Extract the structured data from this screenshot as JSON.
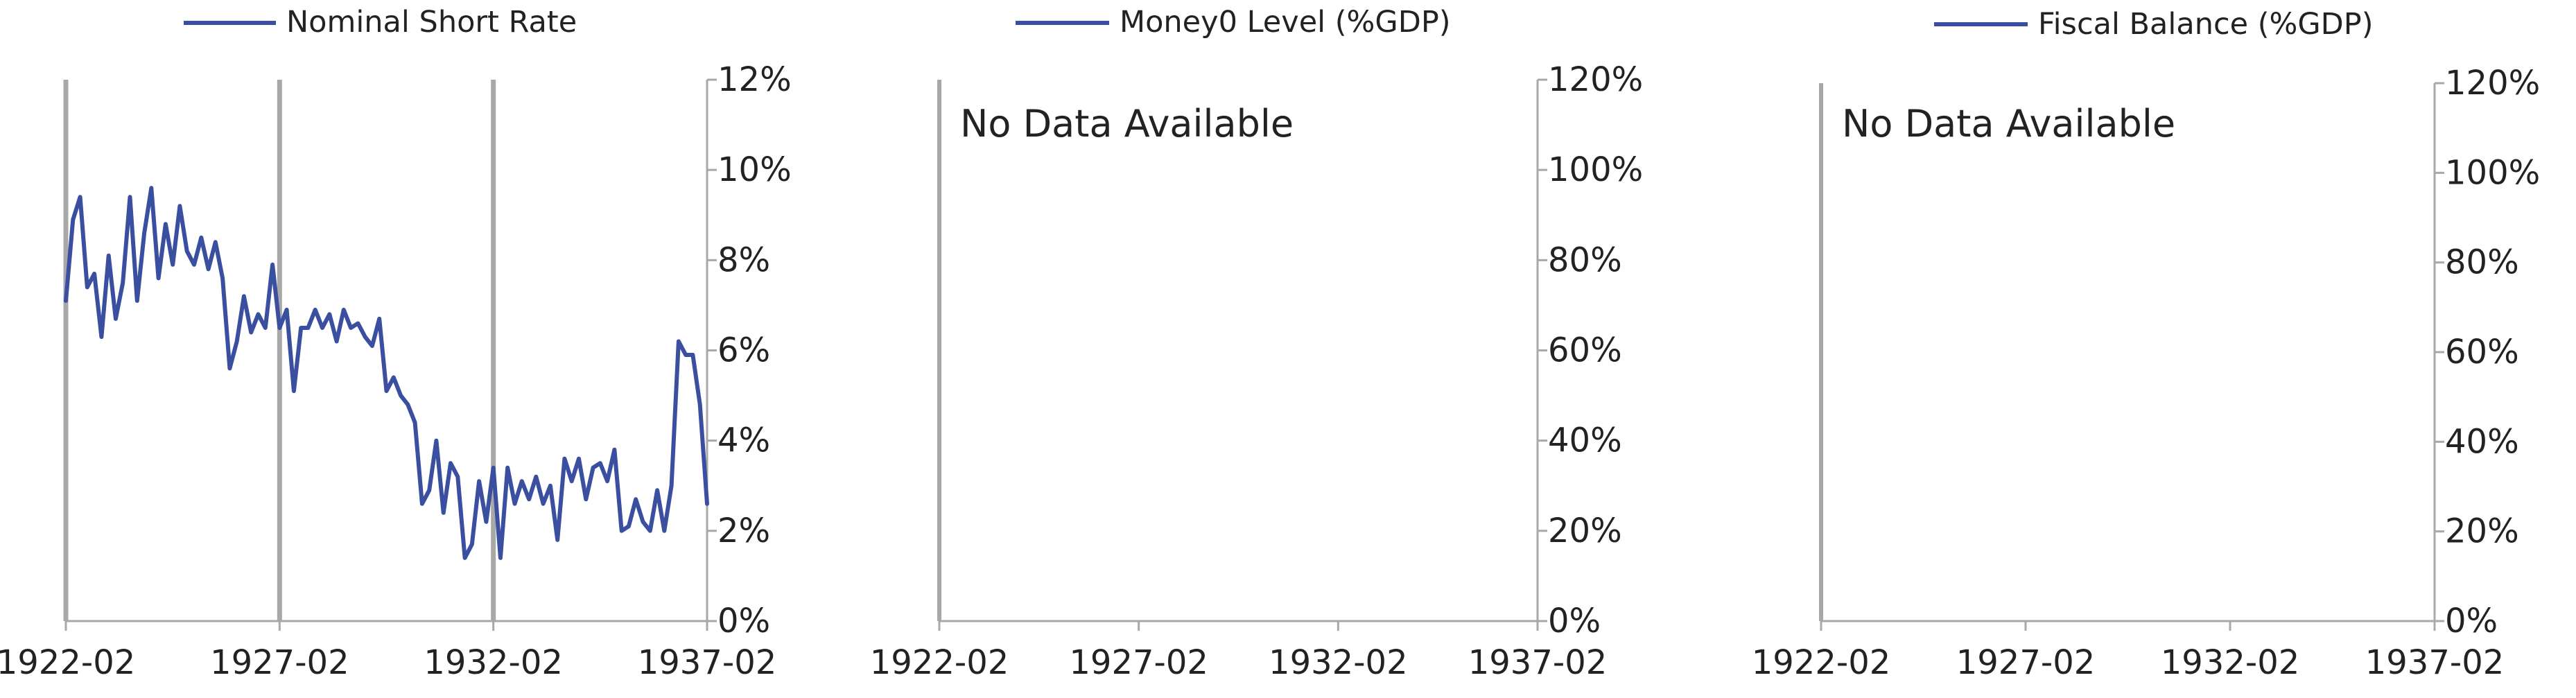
{
  "colors": {
    "series": "#3a4f9f",
    "axis": "#a8a8a8",
    "text": "#222222"
  },
  "chart_data": [
    {
      "type": "line",
      "legend": "Nominal Short Rate",
      "legend_position": "top",
      "x_ticks": [
        "1922-02",
        "1927-02",
        "1932-02",
        "1937-02"
      ],
      "y_ticks": [
        "0%",
        "2%",
        "4%",
        "6%",
        "8%",
        "10%",
        "12%"
      ],
      "ylim": [
        0,
        12
      ],
      "y_axis": "right",
      "vertical_markers": [
        "1922-02",
        "1927-02",
        "1932-02"
      ],
      "series": [
        {
          "name": "Nominal Short Rate",
          "values": [
            [
              "1922-02",
              7.1
            ],
            [
              "1922-04",
              8.9
            ],
            [
              "1922-06",
              9.4
            ],
            [
              "1922-08",
              7.4
            ],
            [
              "1922-10",
              7.7
            ],
            [
              "1922-12",
              6.3
            ],
            [
              "1923-02",
              8.1
            ],
            [
              "1923-04",
              6.7
            ],
            [
              "1923-06",
              7.5
            ],
            [
              "1923-08",
              9.4
            ],
            [
              "1923-10",
              7.1
            ],
            [
              "1923-12",
              8.6
            ],
            [
              "1924-02",
              9.6
            ],
            [
              "1924-04",
              7.6
            ],
            [
              "1924-06",
              8.8
            ],
            [
              "1924-08",
              7.9
            ],
            [
              "1924-10",
              9.2
            ],
            [
              "1924-12",
              8.2
            ],
            [
              "1925-02",
              7.9
            ],
            [
              "1925-04",
              8.5
            ],
            [
              "1925-06",
              7.8
            ],
            [
              "1925-08",
              8.4
            ],
            [
              "1925-10",
              7.6
            ],
            [
              "1925-12",
              5.6
            ],
            [
              "1926-02",
              6.2
            ],
            [
              "1926-04",
              7.2
            ],
            [
              "1926-06",
              6.4
            ],
            [
              "1926-08",
              6.8
            ],
            [
              "1926-10",
              6.5
            ],
            [
              "1926-12",
              7.9
            ],
            [
              "1927-02",
              6.5
            ],
            [
              "1927-04",
              6.9
            ],
            [
              "1927-06",
              5.1
            ],
            [
              "1927-08",
              6.5
            ],
            [
              "1927-10",
              6.5
            ],
            [
              "1927-12",
              6.9
            ],
            [
              "1928-02",
              6.5
            ],
            [
              "1928-04",
              6.8
            ],
            [
              "1928-06",
              6.2
            ],
            [
              "1928-08",
              6.9
            ],
            [
              "1928-10",
              6.5
            ],
            [
              "1928-12",
              6.6
            ],
            [
              "1929-02",
              6.3
            ],
            [
              "1929-04",
              6.1
            ],
            [
              "1929-06",
              6.7
            ],
            [
              "1929-08",
              5.1
            ],
            [
              "1929-10",
              5.4
            ],
            [
              "1929-12",
              5.0
            ],
            [
              "1930-02",
              4.8
            ],
            [
              "1930-04",
              4.4
            ],
            [
              "1930-06",
              2.6
            ],
            [
              "1930-08",
              2.9
            ],
            [
              "1930-10",
              4.0
            ],
            [
              "1930-12",
              2.4
            ],
            [
              "1931-02",
              3.5
            ],
            [
              "1931-04",
              3.2
            ],
            [
              "1931-06",
              1.4
            ],
            [
              "1931-08",
              1.7
            ],
            [
              "1931-10",
              3.1
            ],
            [
              "1931-12",
              2.2
            ],
            [
              "1932-02",
              3.4
            ],
            [
              "1932-04",
              1.4
            ],
            [
              "1932-06",
              3.4
            ],
            [
              "1932-08",
              2.6
            ],
            [
              "1932-10",
              3.1
            ],
            [
              "1932-12",
              2.7
            ],
            [
              "1933-02",
              3.2
            ],
            [
              "1933-04",
              2.6
            ],
            [
              "1933-06",
              3.0
            ],
            [
              "1933-08",
              1.8
            ],
            [
              "1933-10",
              3.6
            ],
            [
              "1933-12",
              3.1
            ],
            [
              "1934-02",
              3.6
            ],
            [
              "1934-04",
              2.7
            ],
            [
              "1934-06",
              3.4
            ],
            [
              "1934-08",
              3.5
            ],
            [
              "1934-10",
              3.1
            ],
            [
              "1934-12",
              3.8
            ],
            [
              "1935-02",
              2.0
            ],
            [
              "1935-04",
              2.1
            ],
            [
              "1935-06",
              2.7
            ],
            [
              "1935-08",
              2.2
            ],
            [
              "1935-10",
              2.0
            ],
            [
              "1935-12",
              2.9
            ],
            [
              "1936-02",
              2.0
            ],
            [
              "1936-04",
              3.0
            ],
            [
              "1936-06",
              6.2
            ],
            [
              "1936-08",
              5.9
            ],
            [
              "1936-10",
              5.9
            ],
            [
              "1936-12",
              4.8
            ],
            [
              "1937-02",
              2.6
            ]
          ]
        }
      ]
    },
    {
      "type": "line",
      "legend": "Money0 Level (%GDP)",
      "legend_position": "top",
      "no_data_text": "No Data Available",
      "x_ticks": [
        "1922-02",
        "1927-02",
        "1932-02",
        "1937-02"
      ],
      "y_ticks": [
        "0%",
        "20%",
        "40%",
        "60%",
        "80%",
        "100%",
        "120%"
      ],
      "ylim": [
        0,
        120
      ],
      "y_axis": "right",
      "series": []
    },
    {
      "type": "line",
      "legend": "Fiscal Balance (%GDP)",
      "legend_position": "top",
      "no_data_text": "No Data Available",
      "x_ticks": [
        "1922-02",
        "1927-02",
        "1932-02",
        "1937-02"
      ],
      "y_ticks": [
        "0%",
        "20%",
        "40%",
        "60%",
        "80%",
        "100%",
        "120%"
      ],
      "ylim": [
        0,
        120
      ],
      "y_axis": "right",
      "series": []
    }
  ]
}
